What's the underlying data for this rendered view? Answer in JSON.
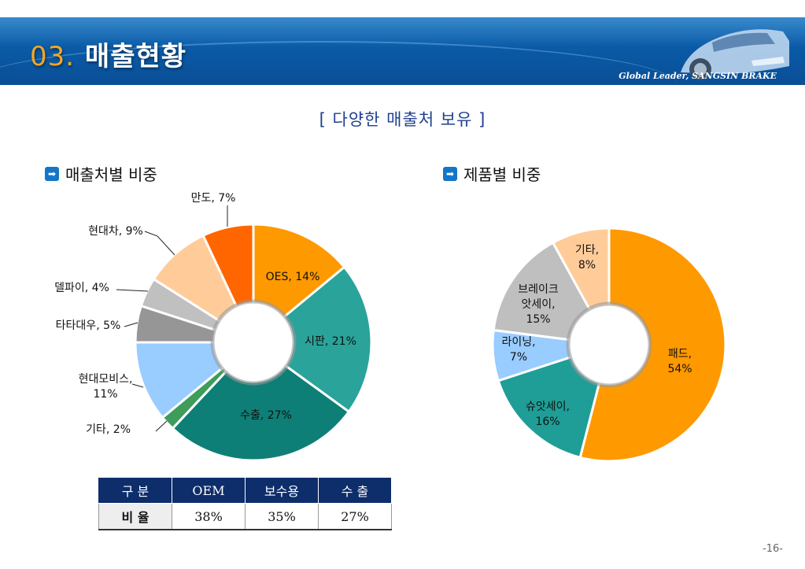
{
  "header": {
    "num": "03.",
    "title": "매출현황",
    "slogan": "Global Leader, SANGSIN BRAKE"
  },
  "subtitle": "[ 다양한 매출처 보유 ]",
  "sections": {
    "left_title": "매출처별 비중",
    "right_title": "제품별 비중"
  },
  "chart_data": [
    {
      "type": "pie",
      "title": "매출처별 비중",
      "slices": [
        {
          "label": [
            "OES, 14%"
          ],
          "value": 14,
          "color": "#FF9900"
        },
        {
          "label": [
            "시판, 21%"
          ],
          "value": 21,
          "color": "#2AA39A"
        },
        {
          "label": [
            "수출, 27%"
          ],
          "value": 27,
          "color": "#0E7F77"
        },
        {
          "label": [
            "기타, 2%"
          ],
          "value": 2,
          "color": "#3E9D5A"
        },
        {
          "label": [
            "현대모비스,",
            "11%"
          ],
          "value": 11,
          "color": "#99CCFF"
        },
        {
          "label": [
            "타타대우, 5%"
          ],
          "value": 5,
          "color": "#969696"
        },
        {
          "label": [
            "델파이, 4%"
          ],
          "value": 4,
          "color": "#C0C0C0"
        },
        {
          "label": [
            "현대차, 9%"
          ],
          "value": 9,
          "color": "#FFCC99"
        },
        {
          "label": [
            "만도, 7%"
          ],
          "value": 7,
          "color": "#FF6600"
        }
      ]
    },
    {
      "type": "pie",
      "title": "제품별 비중",
      "slices": [
        {
          "label": [
            "패드,",
            "54%"
          ],
          "value": 54,
          "color": "#FF9900"
        },
        {
          "label": [
            "슈앗세이,",
            "16%"
          ],
          "value": 16,
          "color": "#1E9E96"
        },
        {
          "label": [
            "라이닝,",
            "7%"
          ],
          "value": 7,
          "color": "#99CCFF"
        },
        {
          "label": [
            "브레이크",
            "앗세이,",
            "15%"
          ],
          "value": 15,
          "color": "#BFBFBF"
        },
        {
          "label": [
            "기타,",
            "8%"
          ],
          "value": 8,
          "color": "#FFCC99"
        }
      ]
    }
  ],
  "table": {
    "headers": [
      "구  분",
      "OEM",
      "보수용",
      "수  출"
    ],
    "row": [
      "비  율",
      "38%",
      "35%",
      "27%"
    ]
  },
  "page_number": "-16-"
}
